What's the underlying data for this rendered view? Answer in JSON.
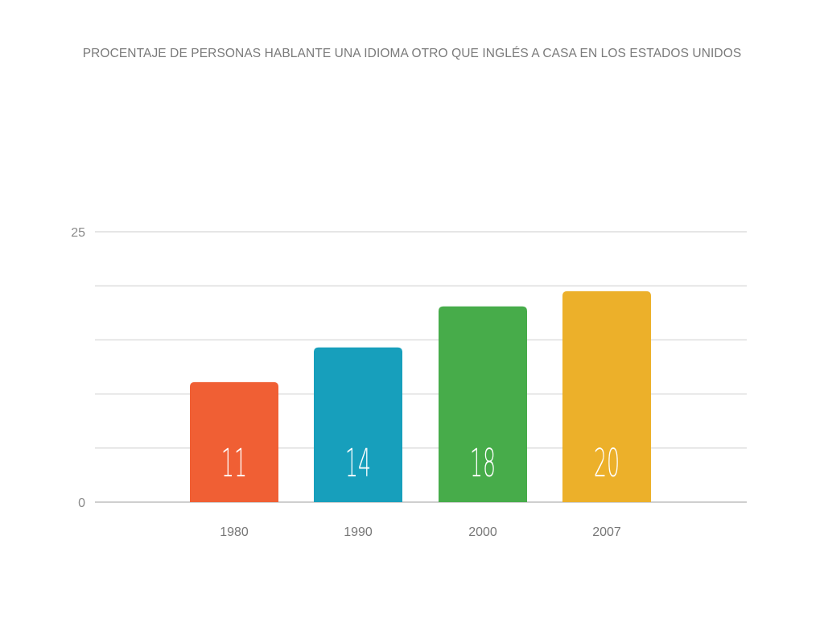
{
  "chart_data": {
    "type": "bar",
    "title": "PROCENTAJE DE PERSONAS HABLANTE UNA IDIOMA OTRO QUE INGLÉS A CASA EN LOS ESTADOS UNIDOS",
    "xlabel": "",
    "ylabel": "",
    "ylim": [
      0,
      25
    ],
    "yticks": [
      0,
      5,
      10,
      15,
      20,
      25
    ],
    "ytick_labels": [
      "0",
      "25"
    ],
    "grid": true,
    "categories": [
      "1980",
      "1990",
      "2000",
      "2007"
    ],
    "values": [
      11.1,
      14.3,
      18.1,
      19.5
    ],
    "data_labels": [
      "11",
      "14",
      "18",
      "20"
    ],
    "colors": [
      "#f05f34",
      "#179fbc",
      "#47ac4a",
      "#ecb02a"
    ]
  }
}
